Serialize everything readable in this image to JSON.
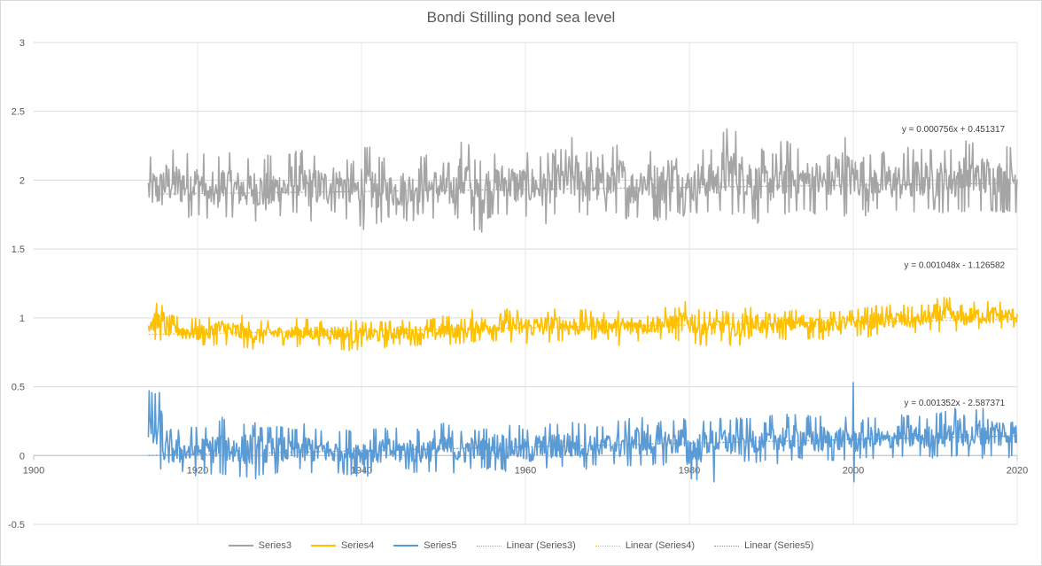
{
  "chart_data": {
    "type": "line",
    "title": "Bondi Stilling pond sea level",
    "xlabel": "",
    "ylabel": "",
    "xlim": [
      1900,
      2020
    ],
    "ylim": [
      -0.5,
      3
    ],
    "x_ticks": [
      "1900",
      "1920",
      "1940",
      "1960",
      "1980",
      "2000",
      "2020"
    ],
    "y_ticks": [
      "-0.5",
      "0",
      "0.5",
      "1",
      "1.5",
      "2",
      "2.5",
      "3"
    ],
    "grid": "horizontal",
    "legend_position": "bottom",
    "series": [
      {
        "name": "Series3",
        "color": "#a5a5a5",
        "x_start": 1914,
        "x_end": 2020,
        "mean": 1.9,
        "min": 1.62,
        "max": 2.4,
        "annual_max": [
          2.17,
          2.23,
          2.22,
          2.21,
          2.06,
          2.2,
          2.16,
          2.17,
          2.19,
          2.16,
          2.22,
          2.2,
          2.18,
          2.2,
          2.15,
          2.25,
          2.17,
          2.13,
          2.16,
          2.2,
          2.18,
          2.14,
          2.3,
          2.17,
          2.2,
          2.22,
          2.19,
          2.2,
          2.2,
          2.24,
          2.32,
          2.24,
          2.2,
          2.27,
          2.17,
          2.24,
          2.23,
          2.3,
          2.17,
          2.24,
          2.23,
          2.4,
          2.3,
          2.23,
          2.22,
          2.3,
          2.24,
          2.24,
          2.21,
          2.35,
          2.27,
          2.2,
          2.22,
          2.21,
          2.26,
          2.24,
          2.24,
          2.26,
          2.3,
          2.28,
          2.24,
          2.27
        ],
        "annual_min": [
          1.7,
          1.73,
          1.72,
          1.74,
          1.72,
          1.73,
          1.71,
          1.7,
          1.65,
          1.73,
          1.75,
          1.69,
          1.72,
          1.75,
          1.7,
          1.64,
          1.67,
          1.72,
          1.7,
          1.73,
          1.71,
          1.72,
          1.72,
          1.62,
          1.72,
          1.74,
          1.73,
          1.72,
          1.68,
          1.75,
          1.73,
          1.72,
          1.74,
          1.75,
          1.72,
          1.75,
          1.7,
          1.75,
          1.74,
          1.75,
          1.76,
          1.74,
          1.75,
          1.68,
          1.74,
          1.73,
          1.76,
          1.75,
          1.75,
          1.74,
          1.77,
          1.74,
          1.76,
          1.76,
          1.73,
          1.78,
          1.76,
          1.75,
          1.77,
          1.76
        ]
      },
      {
        "name": "Series4",
        "color": "#ffc000",
        "x_start": 1914,
        "x_end": 2020,
        "mean": 0.92,
        "min": 0.76,
        "max": 1.15,
        "annual_max": [
          1.11,
          1.02,
          1.0,
          1.0,
          1.04,
          1.02,
          0.98,
          0.98,
          0.97,
          1.0,
          0.98,
          0.98,
          0.99,
          0.97,
          0.98,
          0.99,
          0.98,
          1.0,
          1.02,
          1.0,
          1.06,
          1.04,
          1.07,
          1.07,
          1.06,
          1.07,
          1.06,
          1.06,
          1.04,
          1.06,
          1.06,
          1.07,
          1.08,
          1.12,
          1.06,
          1.06,
          1.04,
          1.08,
          1.04,
          1.06,
          1.07,
          1.06,
          1.05,
          1.06,
          1.08,
          1.09,
          1.1,
          1.08,
          1.1,
          1.15,
          1.1,
          1.12,
          1.13,
          1.11
        ],
        "annual_min": [
          0.83,
          0.82,
          0.8,
          0.79,
          0.8,
          0.78,
          0.77,
          0.8,
          0.8,
          0.79,
          0.8,
          0.8,
          0.76,
          0.79,
          0.78,
          0.8,
          0.8,
          0.79,
          0.8,
          0.81,
          0.82,
          0.83,
          0.82,
          0.8,
          0.82,
          0.83,
          0.82,
          0.84,
          0.84,
          0.8,
          0.83,
          0.84,
          0.83,
          0.82,
          0.8,
          0.82,
          0.8,
          0.85,
          0.84,
          0.84,
          0.86,
          0.84,
          0.86,
          0.87,
          0.86,
          0.88,
          0.88,
          0.88,
          0.9,
          0.9,
          0.9,
          0.91,
          0.91,
          0.92
        ]
      },
      {
        "name": "Series5",
        "color": "#5b9bd5",
        "x_start": 1914,
        "x_end": 2020,
        "mean": 0.04,
        "min": -0.19,
        "max": 0.53,
        "spikes": [
          [
            1914.1,
            0.47
          ],
          [
            2000.0,
            0.53
          ],
          [
            2000.1,
            -0.19
          ],
          [
            1983.0,
            -0.19
          ]
        ],
        "annual_max": [
          0.47,
          0.2,
          0.2,
          0.22,
          0.22,
          0.28,
          0.24,
          0.25,
          0.22,
          0.22,
          0.2,
          0.23,
          0.2,
          0.18,
          0.2,
          0.2,
          0.2,
          0.2,
          0.19,
          0.2,
          0.2,
          0.24,
          0.2,
          0.2,
          0.21,
          0.24,
          0.22,
          0.2,
          0.22,
          0.24,
          0.26,
          0.25,
          0.22,
          0.22,
          0.27,
          0.3,
          0.24,
          0.26,
          0.28,
          0.26,
          0.26,
          0.28,
          0.28,
          0.27,
          0.24,
          0.3,
          0.3,
          0.3,
          0.3,
          0.26,
          0.28,
          0.26,
          0.28,
          0.24,
          0.3,
          0.3,
          0.28,
          0.33,
          0.36,
          0.3,
          0.36,
          0.35,
          0.34
        ],
        "annual_min": [
          -0.12,
          -0.13,
          -0.14,
          -0.15,
          -0.14,
          -0.16,
          -0.16,
          -0.17,
          -0.15,
          -0.13,
          -0.12,
          -0.14,
          -0.12,
          -0.13,
          -0.14,
          -0.15,
          -0.13,
          -0.13,
          -0.12,
          -0.14,
          -0.12,
          -0.11,
          -0.13,
          -0.1,
          -0.1,
          -0.12,
          -0.1,
          -0.12,
          -0.1,
          -0.11,
          -0.1,
          -0.1,
          -0.08,
          -0.07,
          -0.1,
          -0.08,
          -0.08,
          -0.07,
          -0.06,
          -0.19,
          -0.06,
          -0.06,
          -0.08,
          -0.06,
          -0.05,
          -0.06,
          -0.05,
          -0.04,
          -0.06,
          -0.05,
          -0.04,
          -0.04,
          -0.03,
          -0.02
        ]
      }
    ],
    "trendlines": [
      {
        "name": "Linear (Series3)",
        "color": "#a5a5a5",
        "slope": 0.000756,
        "intercept": 0.451317,
        "equation": "y = 0.000756x + 0.451317"
      },
      {
        "name": "Linear (Series4)",
        "color": "#ffc000",
        "slope": 0.001048,
        "intercept": -1.126582,
        "equation": "y = 0.001048x - 1.126582"
      },
      {
        "name": "Linear (Series5)",
        "color": "#5b9bd5",
        "slope": 0.001352,
        "intercept": -2.587371,
        "equation": "y = 0.001352x - 2.587371"
      }
    ],
    "legend": [
      {
        "label": "Series3",
        "color": "#a5a5a5",
        "style": "solid"
      },
      {
        "label": "Series4",
        "color": "#ffc000",
        "style": "solid"
      },
      {
        "label": "Series5",
        "color": "#5b9bd5",
        "style": "solid"
      },
      {
        "label": "Linear (Series3)",
        "color": "#a5a5a5",
        "style": "dotted"
      },
      {
        "label": "Linear (Series4)",
        "color": "#ffc000",
        "style": "dotted"
      },
      {
        "label": "Linear (Series5)",
        "color": "#5b9bd5",
        "style": "dotted"
      }
    ]
  }
}
